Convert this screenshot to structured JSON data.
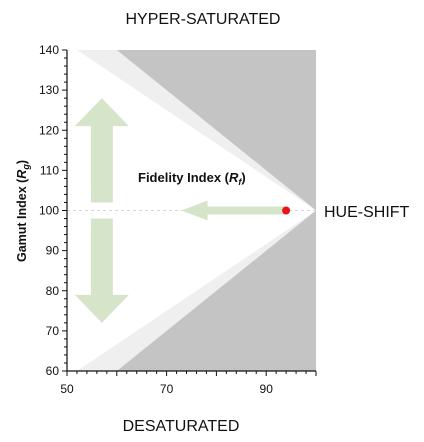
{
  "labels": {
    "top": "HYPER-SATURATED",
    "right": "HUE-SHIFT",
    "bottom": "DESATURATED",
    "annotation": "Fidelity Index (Rₑ)"
  },
  "chart_data": {
    "type": "scatter",
    "title": "",
    "xlabel": "",
    "ylabel": "Gamut Index (Rg)",
    "ylabel_main": "Gamut Index (",
    "ylabel_sub_letter": "R",
    "ylabel_sub": "g",
    "xlim": [
      50,
      100
    ],
    "ylim": [
      60,
      140
    ],
    "xticks": [
      "50",
      "70",
      "90"
    ],
    "xtick_values": [
      50,
      70,
      90
    ],
    "yticks": [
      "60",
      "70",
      "80",
      "90",
      "100",
      "110",
      "120",
      "130",
      "140"
    ],
    "ytick_values": [
      60,
      70,
      80,
      90,
      100,
      110,
      120,
      130,
      140
    ],
    "grid": false,
    "points": [
      {
        "x": 94,
        "y": 100
      }
    ],
    "reference_line_y": 100,
    "regions": [
      {
        "name": "infeasible",
        "polygons": [
          [
            [
              60,
              140
            ],
            [
              100,
              140
            ],
            [
              100,
              100
            ]
          ],
          [
            [
              100,
              100
            ],
            [
              100,
              60
            ],
            [
              60,
              60
            ]
          ]
        ]
      },
      {
        "name": "boundary",
        "polygons": [
          [
            [
              52,
              140
            ],
            [
              60,
              140
            ],
            [
              100,
              100
            ],
            [
              52,
              140
            ]
          ],
          [
            [
              100,
              100
            ],
            [
              60,
              60
            ],
            [
              52,
              60
            ]
          ]
        ]
      }
    ],
    "arrows": [
      {
        "from": [
          94,
          100
        ],
        "to": [
          73,
          100
        ],
        "direction": "left"
      },
      {
        "from": [
          57,
          102
        ],
        "to": [
          57,
          128
        ],
        "direction": "up"
      },
      {
        "from": [
          57,
          98
        ],
        "to": [
          57,
          72
        ],
        "direction": "down"
      }
    ],
    "colors": {
      "infeasible": "#c4c4c4",
      "boundary": "#efefef",
      "arrow": "#d6e4c9",
      "point": "#e8141b",
      "reference_line": "#d8d8d8"
    }
  }
}
